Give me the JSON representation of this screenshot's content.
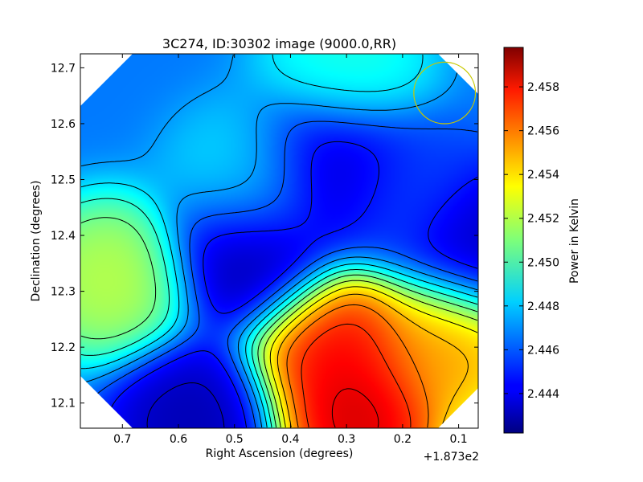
{
  "chart_data": {
    "type": "heatmap",
    "title": "3C274, ID:30302 image (9000.0,RR)",
    "xlabel": "Right Ascension (degrees)",
    "ylabel": "Declination (degrees)",
    "x_offset_label": "+1.873e2",
    "xlim": [
      0.775,
      0.065
    ],
    "ylim": [
      12.055,
      12.725
    ],
    "x_ticks": [
      0.7,
      0.6,
      0.5,
      0.4,
      0.3,
      0.2,
      0.1
    ],
    "x_tick_labels": [
      "0.7",
      "0.6",
      "0.5",
      "0.4",
      "0.3",
      "0.2",
      "0.1"
    ],
    "y_ticks": [
      12.1,
      12.2,
      12.3,
      12.4,
      12.5,
      12.6,
      12.7
    ],
    "y_tick_labels": [
      "12.1",
      "12.2",
      "12.3",
      "12.4",
      "12.5",
      "12.6",
      "12.7"
    ],
    "colormap": "jet",
    "colorbar": {
      "label": "Power in Kelvin",
      "range": [
        2.4422,
        2.4598
      ],
      "ticks": [
        2.444,
        2.446,
        2.448,
        2.45,
        2.452,
        2.454,
        2.456,
        2.458
      ],
      "tick_labels": [
        "2.444",
        "2.446",
        "2.448",
        "2.450",
        "2.452",
        "2.454",
        "2.456",
        "2.458"
      ]
    },
    "features": [
      {
        "x": 0.28,
        "y": 12.07,
        "value": 2.4595
      },
      {
        "x": 0.32,
        "y": 12.2,
        "value": 2.4585
      },
      {
        "x": 0.12,
        "y": 12.2,
        "value": 2.4555
      },
      {
        "x": 0.72,
        "y": 12.32,
        "value": 2.4525
      },
      {
        "x": 0.47,
        "y": 12.36,
        "value": 2.4425
      },
      {
        "x": 0.33,
        "y": 12.52,
        "value": 2.4428
      },
      {
        "x": 0.2,
        "y": 12.48,
        "value": 2.4455
      },
      {
        "x": 0.57,
        "y": 12.07,
        "value": 2.4428
      },
      {
        "x": 0.3,
        "y": 12.7,
        "value": 2.4495
      },
      {
        "x": 0.47,
        "y": 12.5,
        "value": 2.4485
      },
      {
        "x": 0.06,
        "y": 12.38,
        "value": 2.443
      }
    ],
    "beam_circle": {
      "x": 0.125,
      "y": 12.655,
      "radius": 0.055,
      "color": "#c8c800"
    }
  }
}
